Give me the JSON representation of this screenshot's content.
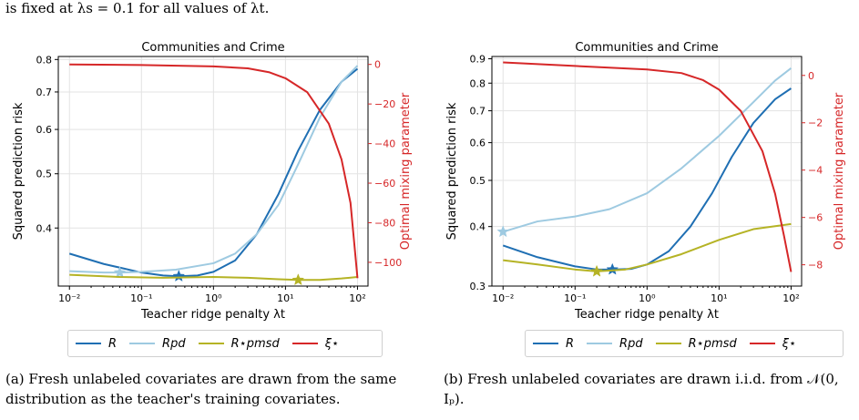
{
  "top_text": "is fixed at λs = 0.1 for all values of λt.",
  "series_legend": [
    {
      "key": "R",
      "label": "R",
      "color": "#1f6fb3"
    },
    {
      "key": "Rpd",
      "label": "Rpd",
      "color": "#9ecae1"
    },
    {
      "key": "Rpmsd",
      "label": "R⋆pmsd",
      "color": "#b5b325"
    },
    {
      "key": "xi",
      "label": "ξ⋆",
      "color": "#d62728"
    }
  ],
  "captions": {
    "a": "(a) Fresh unlabeled covariates are drawn from the same distribution as the teacher's training covariates.",
    "b": "(b) Fresh unlabeled covariates are drawn i.i.d. from 𝒩(0, Iₚ)."
  },
  "chart_data": [
    {
      "type": "line",
      "title": "Communities and Crime",
      "xlabel": "Teacher ridge penalty λt",
      "ylabel": "Squared prediction risk",
      "y2label": "Optimal mixing parameter",
      "xscale": "log",
      "yscale": "log",
      "xlim": [
        0.007,
        140
      ],
      "ylim": [
        0.315,
        0.81
      ],
      "y2lim": [
        -112,
        4
      ],
      "xticks": [
        0.01,
        0.1,
        1,
        10,
        100
      ],
      "xtick_labels": [
        "10⁻²",
        "10⁻¹",
        "10⁰",
        "10¹",
        "10²"
      ],
      "yticks": [
        0.4,
        0.5,
        0.6,
        0.7,
        0.8
      ],
      "ytick_labels": [
        "0.4",
        "0.5",
        "0.6",
        "0.7",
        "0.8"
      ],
      "y2ticks": [
        0,
        -20,
        -40,
        -60,
        -80,
        -100
      ],
      "y2tick_labels": [
        "0",
        "−20",
        "−40",
        "−60",
        "−80",
        "−100"
      ],
      "grid": true,
      "legend_position": "bottom",
      "series": [
        {
          "name": "R",
          "axis": "left",
          "color": "#1f6fb3",
          "x": [
            0.01,
            0.03,
            0.1,
            0.2,
            0.33,
            0.6,
            1,
            2,
            4,
            8,
            15,
            30,
            60,
            100
          ],
          "y": [
            0.36,
            0.345,
            0.333,
            0.329,
            0.328,
            0.329,
            0.334,
            0.35,
            0.39,
            0.46,
            0.55,
            0.65,
            0.73,
            0.77
          ],
          "marker": {
            "x": 0.33,
            "y": 0.328
          }
        },
        {
          "name": "Rpd",
          "axis": "left",
          "color": "#9ecae1",
          "x": [
            0.01,
            0.03,
            0.05,
            0.1,
            0.3,
            1,
            2,
            4,
            8,
            15,
            30,
            60,
            100
          ],
          "y": [
            0.335,
            0.333,
            0.333,
            0.334,
            0.337,
            0.346,
            0.36,
            0.39,
            0.44,
            0.52,
            0.63,
            0.73,
            0.78
          ],
          "marker": {
            "x": 0.05,
            "y": 0.333
          }
        },
        {
          "name": "Rpmsd",
          "axis": "left",
          "color": "#b5b325",
          "x": [
            0.01,
            0.05,
            0.2,
            1,
            3,
            8,
            15,
            30,
            60,
            100
          ],
          "y": [
            0.33,
            0.327,
            0.326,
            0.327,
            0.326,
            0.324,
            0.323,
            0.323,
            0.325,
            0.327
          ],
          "marker": {
            "x": 15,
            "y": 0.323
          }
        },
        {
          "name": "ξ⋆",
          "axis": "right",
          "color": "#d62728",
          "x": [
            0.01,
            0.1,
            1,
            3,
            6,
            10,
            20,
            40,
            60,
            80,
            100
          ],
          "y": [
            0,
            -0.3,
            -1,
            -2,
            -4,
            -7,
            -14,
            -30,
            -48,
            -70,
            -108
          ]
        }
      ]
    },
    {
      "type": "line",
      "title": "Communities and Crime",
      "xlabel": "Teacher ridge penalty λt",
      "ylabel": "Squared prediction risk",
      "y2label": "Optimal mixing parameter",
      "xscale": "log",
      "yscale": "log",
      "xlim": [
        0.007,
        140
      ],
      "ylim": [
        0.3,
        0.91
      ],
      "y2lim": [
        -8.9,
        0.8
      ],
      "xticks": [
        0.01,
        0.1,
        1,
        10,
        100
      ],
      "xtick_labels": [
        "10⁻²",
        "10⁻¹",
        "10⁰",
        "10¹",
        "10²"
      ],
      "yticks": [
        0.3,
        0.4,
        0.5,
        0.6,
        0.7,
        0.8,
        0.9
      ],
      "ytick_labels": [
        "0.3",
        "0.4",
        "0.5",
        "0.6",
        "0.7",
        "0.8",
        "0.9"
      ],
      "y2ticks": [
        0,
        -2,
        -4,
        -6,
        -8
      ],
      "y2tick_labels": [
        "0",
        "−2",
        "−4",
        "−6",
        "−8"
      ],
      "grid": true,
      "legend_position": "bottom",
      "series": [
        {
          "name": "R",
          "axis": "left",
          "color": "#1f6fb3",
          "x": [
            0.01,
            0.03,
            0.1,
            0.2,
            0.33,
            0.6,
            1,
            2,
            4,
            8,
            15,
            30,
            60,
            100
          ],
          "y": [
            0.365,
            0.345,
            0.33,
            0.325,
            0.325,
            0.326,
            0.333,
            0.355,
            0.4,
            0.47,
            0.56,
            0.66,
            0.74,
            0.78
          ],
          "marker": {
            "x": 0.33,
            "y": 0.325
          }
        },
        {
          "name": "Rpd",
          "axis": "left",
          "color": "#9ecae1",
          "x": [
            0.01,
            0.03,
            0.1,
            0.3,
            1,
            3,
            10,
            30,
            60,
            100
          ],
          "y": [
            0.39,
            0.41,
            0.42,
            0.435,
            0.47,
            0.53,
            0.62,
            0.73,
            0.81,
            0.86
          ],
          "marker": {
            "x": 0.01,
            "y": 0.39
          }
        },
        {
          "name": "Rpmsd",
          "axis": "left",
          "color": "#b5b325",
          "x": [
            0.01,
            0.03,
            0.1,
            0.2,
            0.5,
            1,
            3,
            10,
            30,
            100
          ],
          "y": [
            0.34,
            0.333,
            0.325,
            0.322,
            0.325,
            0.333,
            0.35,
            0.375,
            0.395,
            0.405
          ],
          "marker": {
            "x": 0.2,
            "y": 0.322
          }
        },
        {
          "name": "ξ⋆",
          "axis": "right",
          "color": "#d62728",
          "x": [
            0.01,
            0.1,
            1,
            3,
            6,
            10,
            20,
            40,
            60,
            80,
            100
          ],
          "y": [
            0.55,
            0.4,
            0.25,
            0.1,
            -0.2,
            -0.6,
            -1.5,
            -3.2,
            -5,
            -6.8,
            -8.3
          ]
        }
      ]
    }
  ]
}
